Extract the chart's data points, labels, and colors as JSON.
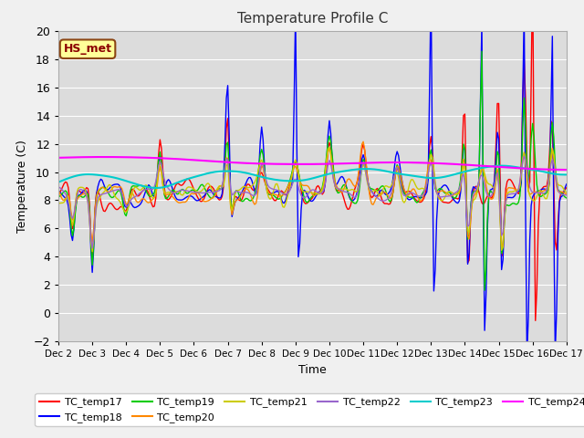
{
  "title": "Temperature Profile C",
  "xlabel": "Time",
  "ylabel": "Temperature (C)",
  "ylim": [
    -2,
    20
  ],
  "xlim": [
    0,
    360
  ],
  "x_tick_labels": [
    "Dec 2",
    "Dec 3",
    "Dec 4",
    "Dec 5",
    "Dec 6",
    "Dec 7",
    "Dec 8",
    "Dec 9",
    "Dec 10",
    "Dec 11",
    "Dec 12",
    "Dec 13",
    "Dec 14",
    "Dec 15",
    "Dec 16",
    "Dec 17"
  ],
  "x_tick_positions": [
    0,
    24,
    48,
    72,
    96,
    120,
    144,
    168,
    192,
    216,
    240,
    264,
    288,
    312,
    336,
    360
  ],
  "series_colors": {
    "TC_temp17": "#ff0000",
    "TC_temp18": "#0000ff",
    "TC_temp19": "#00cc00",
    "TC_temp20": "#ff8800",
    "TC_temp21": "#cccc00",
    "TC_temp22": "#9966cc",
    "TC_temp23": "#00cccc",
    "TC_temp24": "#ff00ff"
  },
  "annotation_text": "HS_met",
  "annotation_bbox_facecolor": "#ffff99",
  "annotation_bbox_edgecolor": "#8B4513",
  "annotation_text_color": "#8B0000",
  "plot_bg_color": "#dcdcdc",
  "fig_bg_color": "#f0f0f0",
  "grid_color": "#ffffff",
  "title_fontsize": 11,
  "legend_fontsize": 8,
  "axis_fontsize": 9,
  "tick_fontsize": 7.5
}
